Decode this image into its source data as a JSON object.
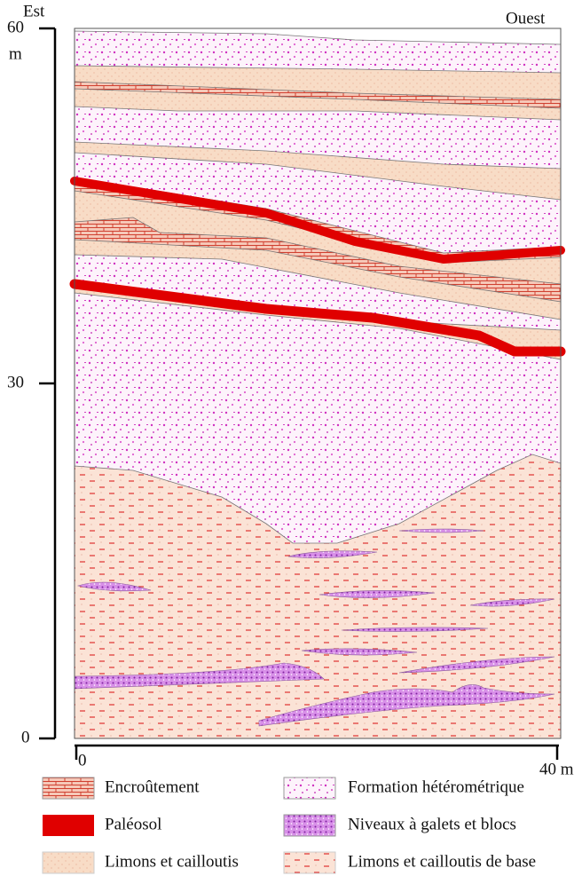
{
  "header": {
    "left": "Est",
    "right": "Ouest"
  },
  "vertical_axis": {
    "top": "60",
    "unit": "m",
    "middle": "30",
    "bottom": "0"
  },
  "horizontal_axis": {
    "start": "0",
    "end": "40 m"
  },
  "legend": [
    {
      "label": "Encroûtement"
    },
    {
      "label": "Formation hétérométrique"
    },
    {
      "label": "Paléosol"
    },
    {
      "label": "Niveaux à galets et blocs"
    },
    {
      "label": "Limons et cailloutis"
    },
    {
      "label": "Limons et cailloutis de base"
    }
  ]
}
